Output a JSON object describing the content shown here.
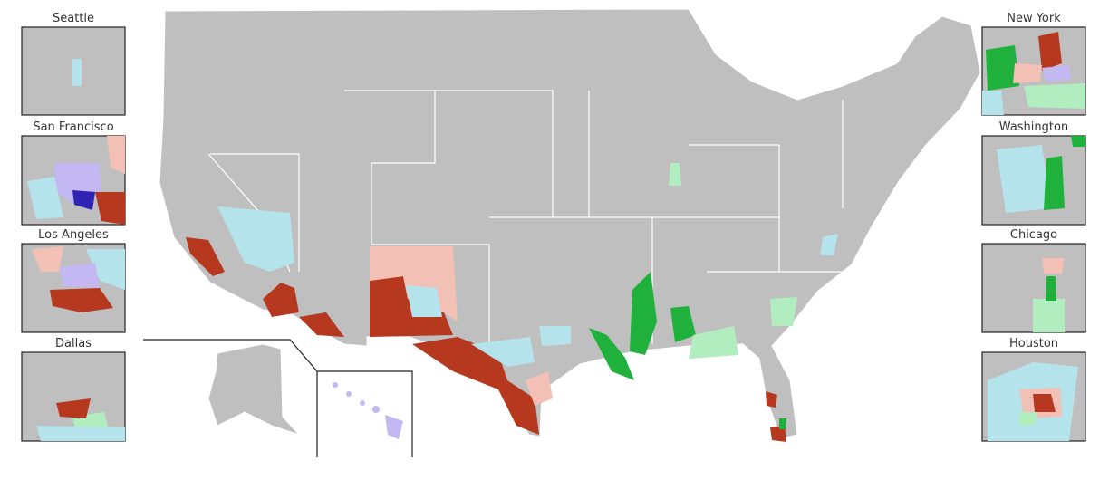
{
  "insets": {
    "left": [
      "Seattle",
      "San Francisco",
      "Los Angeles",
      "Dallas"
    ],
    "right": [
      "New York",
      "Washington",
      "Chicago",
      "Houston"
    ]
  }
}
